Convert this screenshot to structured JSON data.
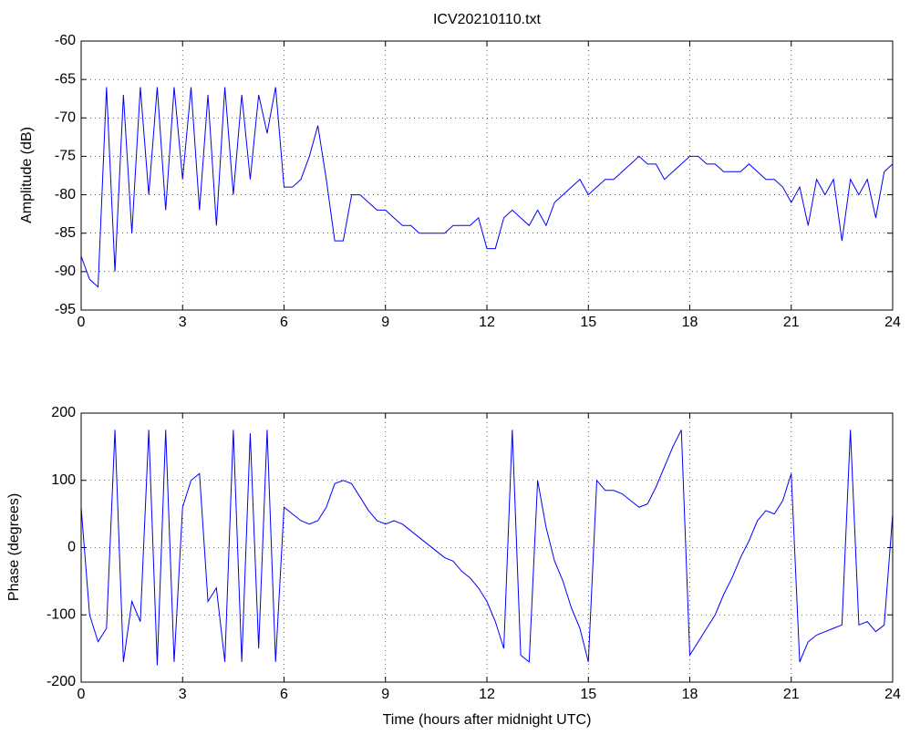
{
  "chart_data": [
    {
      "type": "line",
      "title": "ICV20210110.txt",
      "y_label": "Amplitude (dB)",
      "x": [
        0,
        0.25,
        0.5,
        0.75,
        1,
        1.25,
        1.5,
        1.75,
        2,
        2.25,
        2.5,
        2.75,
        3,
        3.25,
        3.5,
        3.75,
        4,
        4.25,
        4.5,
        4.75,
        5,
        5.25,
        5.5,
        5.75,
        6,
        6.25,
        6.5,
        6.75,
        7,
        7.25,
        7.5,
        7.75,
        8,
        8.25,
        8.5,
        8.75,
        9,
        9.25,
        9.5,
        9.75,
        10,
        10.25,
        10.5,
        10.75,
        11,
        11.25,
        11.5,
        11.75,
        12,
        12.25,
        12.5,
        12.75,
        13,
        13.25,
        13.5,
        13.75,
        14,
        14.25,
        14.5,
        14.75,
        15,
        15.25,
        15.5,
        15.75,
        16,
        16.25,
        16.5,
        16.75,
        17,
        17.25,
        17.5,
        17.75,
        18,
        18.25,
        18.5,
        18.75,
        19,
        19.25,
        19.5,
        19.75,
        20,
        20.25,
        20.5,
        20.75,
        21,
        21.25,
        21.5,
        21.75,
        22,
        22.25,
        22.5,
        22.75,
        23,
        23.25,
        23.5,
        23.75,
        24
      ],
      "values": [
        -88,
        -91,
        -92,
        -66,
        -90,
        -67,
        -85,
        -66,
        -80,
        -66,
        -82,
        -66,
        -78,
        -66,
        -82,
        -67,
        -84,
        -66,
        -80,
        -67,
        -78,
        -67,
        -72,
        -66,
        -79,
        -79,
        -78,
        -75,
        -71,
        -78,
        -86,
        -86,
        -80,
        -80,
        -81,
        -82,
        -82,
        -83,
        -84,
        -84,
        -85,
        -85,
        -85,
        -85,
        -84,
        -84,
        -84,
        -83,
        -87,
        -87,
        -83,
        -82,
        -83,
        -84,
        -82,
        -84,
        -81,
        -80,
        -79,
        -78,
        -80,
        -79,
        -78,
        -78,
        -77,
        -76,
        -75,
        -76,
        -76,
        -78,
        -77,
        -76,
        -75,
        -75,
        -76,
        -76,
        -77,
        -77,
        -77,
        -76,
        -77,
        -78,
        -78,
        -79,
        -81,
        -79,
        -84,
        -78,
        -80,
        -78,
        -86,
        -78,
        -80,
        -78,
        -83,
        -77,
        -76
      ],
      "color": "#0000ff",
      "xlim": [
        0,
        24
      ],
      "xticks": [
        0,
        3,
        6,
        9,
        12,
        15,
        18,
        21,
        24
      ],
      "ylim": [
        -95,
        -60
      ],
      "yticks": [
        -95,
        -90,
        -85,
        -80,
        -75,
        -70,
        -65,
        -60
      ],
      "grid": true
    },
    {
      "type": "line",
      "x_label": "Time (hours after midnight UTC)",
      "y_label": "Phase (degrees)",
      "x": [
        0,
        0.25,
        0.5,
        0.75,
        1,
        1.25,
        1.5,
        1.75,
        2,
        2.25,
        2.5,
        2.75,
        3,
        3.25,
        3.5,
        3.75,
        4,
        4.25,
        4.5,
        4.75,
        5,
        5.25,
        5.5,
        5.75,
        6,
        6.25,
        6.5,
        6.75,
        7,
        7.25,
        7.5,
        7.75,
        8,
        8.25,
        8.5,
        8.75,
        9,
        9.25,
        9.5,
        9.75,
        10,
        10.25,
        10.5,
        10.75,
        11,
        11.25,
        11.5,
        11.75,
        12,
        12.25,
        12.5,
        12.75,
        13,
        13.25,
        13.5,
        13.75,
        14,
        14.25,
        14.5,
        14.75,
        15,
        15.25,
        15.5,
        15.75,
        16,
        16.25,
        16.5,
        16.75,
        17,
        17.25,
        17.5,
        17.75,
        18,
        18.25,
        18.5,
        18.75,
        19,
        19.25,
        19.5,
        19.75,
        20,
        20.25,
        20.5,
        20.75,
        21,
        21.25,
        21.5,
        21.75,
        22,
        22.25,
        22.5,
        22.75,
        23,
        23.25,
        23.5,
        23.75,
        24
      ],
      "values": [
        60,
        -100,
        -140,
        -120,
        175,
        -170,
        -80,
        -110,
        175,
        -175,
        175,
        -170,
        60,
        100,
        110,
        -80,
        -60,
        -170,
        175,
        -170,
        170,
        -150,
        175,
        -170,
        60,
        50,
        40,
        35,
        40,
        60,
        95,
        100,
        95,
        75,
        55,
        40,
        35,
        40,
        35,
        25,
        15,
        5,
        -5,
        -15,
        -20,
        -35,
        -45,
        -60,
        -80,
        -110,
        -150,
        175,
        -160,
        -170,
        100,
        30,
        -20,
        -50,
        -90,
        -120,
        -170,
        100,
        85,
        85,
        80,
        70,
        60,
        65,
        90,
        120,
        150,
        175,
        -160,
        -140,
        -120,
        -100,
        -70,
        -45,
        -15,
        10,
        40,
        55,
        50,
        70,
        110,
        -170,
        -140,
        -130,
        -125,
        -120,
        -115,
        175,
        -115,
        -110,
        -125,
        -115,
        50
      ],
      "color": "#0000ff",
      "xlim": [
        0,
        24
      ],
      "xticks": [
        0,
        3,
        6,
        9,
        12,
        15,
        18,
        21,
        24
      ],
      "ylim": [
        -200,
        200
      ],
      "yticks": [
        -200,
        -100,
        0,
        100,
        200
      ],
      "grid": true
    }
  ]
}
